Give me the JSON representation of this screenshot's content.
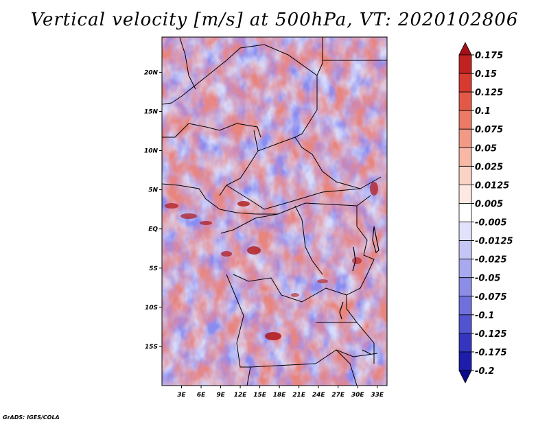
{
  "title": "Vertical velocity [m/s] at 500hPa, VT: 2020102806",
  "credit": "GrADS: IGES/COLA",
  "map": {
    "lat_labels": [
      "20N",
      "15N",
      "10N",
      "5N",
      "EQ",
      "5S",
      "10S",
      "15S"
    ],
    "lon_labels": [
      "3E",
      "6E",
      "9E",
      "12E",
      "15E",
      "18E",
      "21E",
      "24E",
      "27E",
      "30E",
      "33E"
    ],
    "lon_range": [
      0,
      34.5
    ],
    "lat_range": [
      -20,
      24.5
    ]
  },
  "colorbar": {
    "labels": [
      "0.175",
      "0.15",
      "0.125",
      "0.1",
      "0.075",
      "0.05",
      "0.025",
      "0.0125",
      "0.005",
      "-0.005",
      "-0.0125",
      "-0.025",
      "-0.05",
      "-0.075",
      "-0.1",
      "-0.125",
      "-0.175",
      "-0.2"
    ],
    "colors": [
      "#a50f15",
      "#c22121",
      "#d73a2e",
      "#e25a47",
      "#eb7a66",
      "#f29a85",
      "#f7b8a6",
      "#fbd3c6",
      "#fde9e2",
      "#ffffff",
      "#e1e2fb",
      "#c5c6f5",
      "#a8a9ee",
      "#8c8de6",
      "#6f70dc",
      "#5253cf",
      "#3536bf",
      "#1d1da9",
      "#0a0a8a"
    ]
  }
}
